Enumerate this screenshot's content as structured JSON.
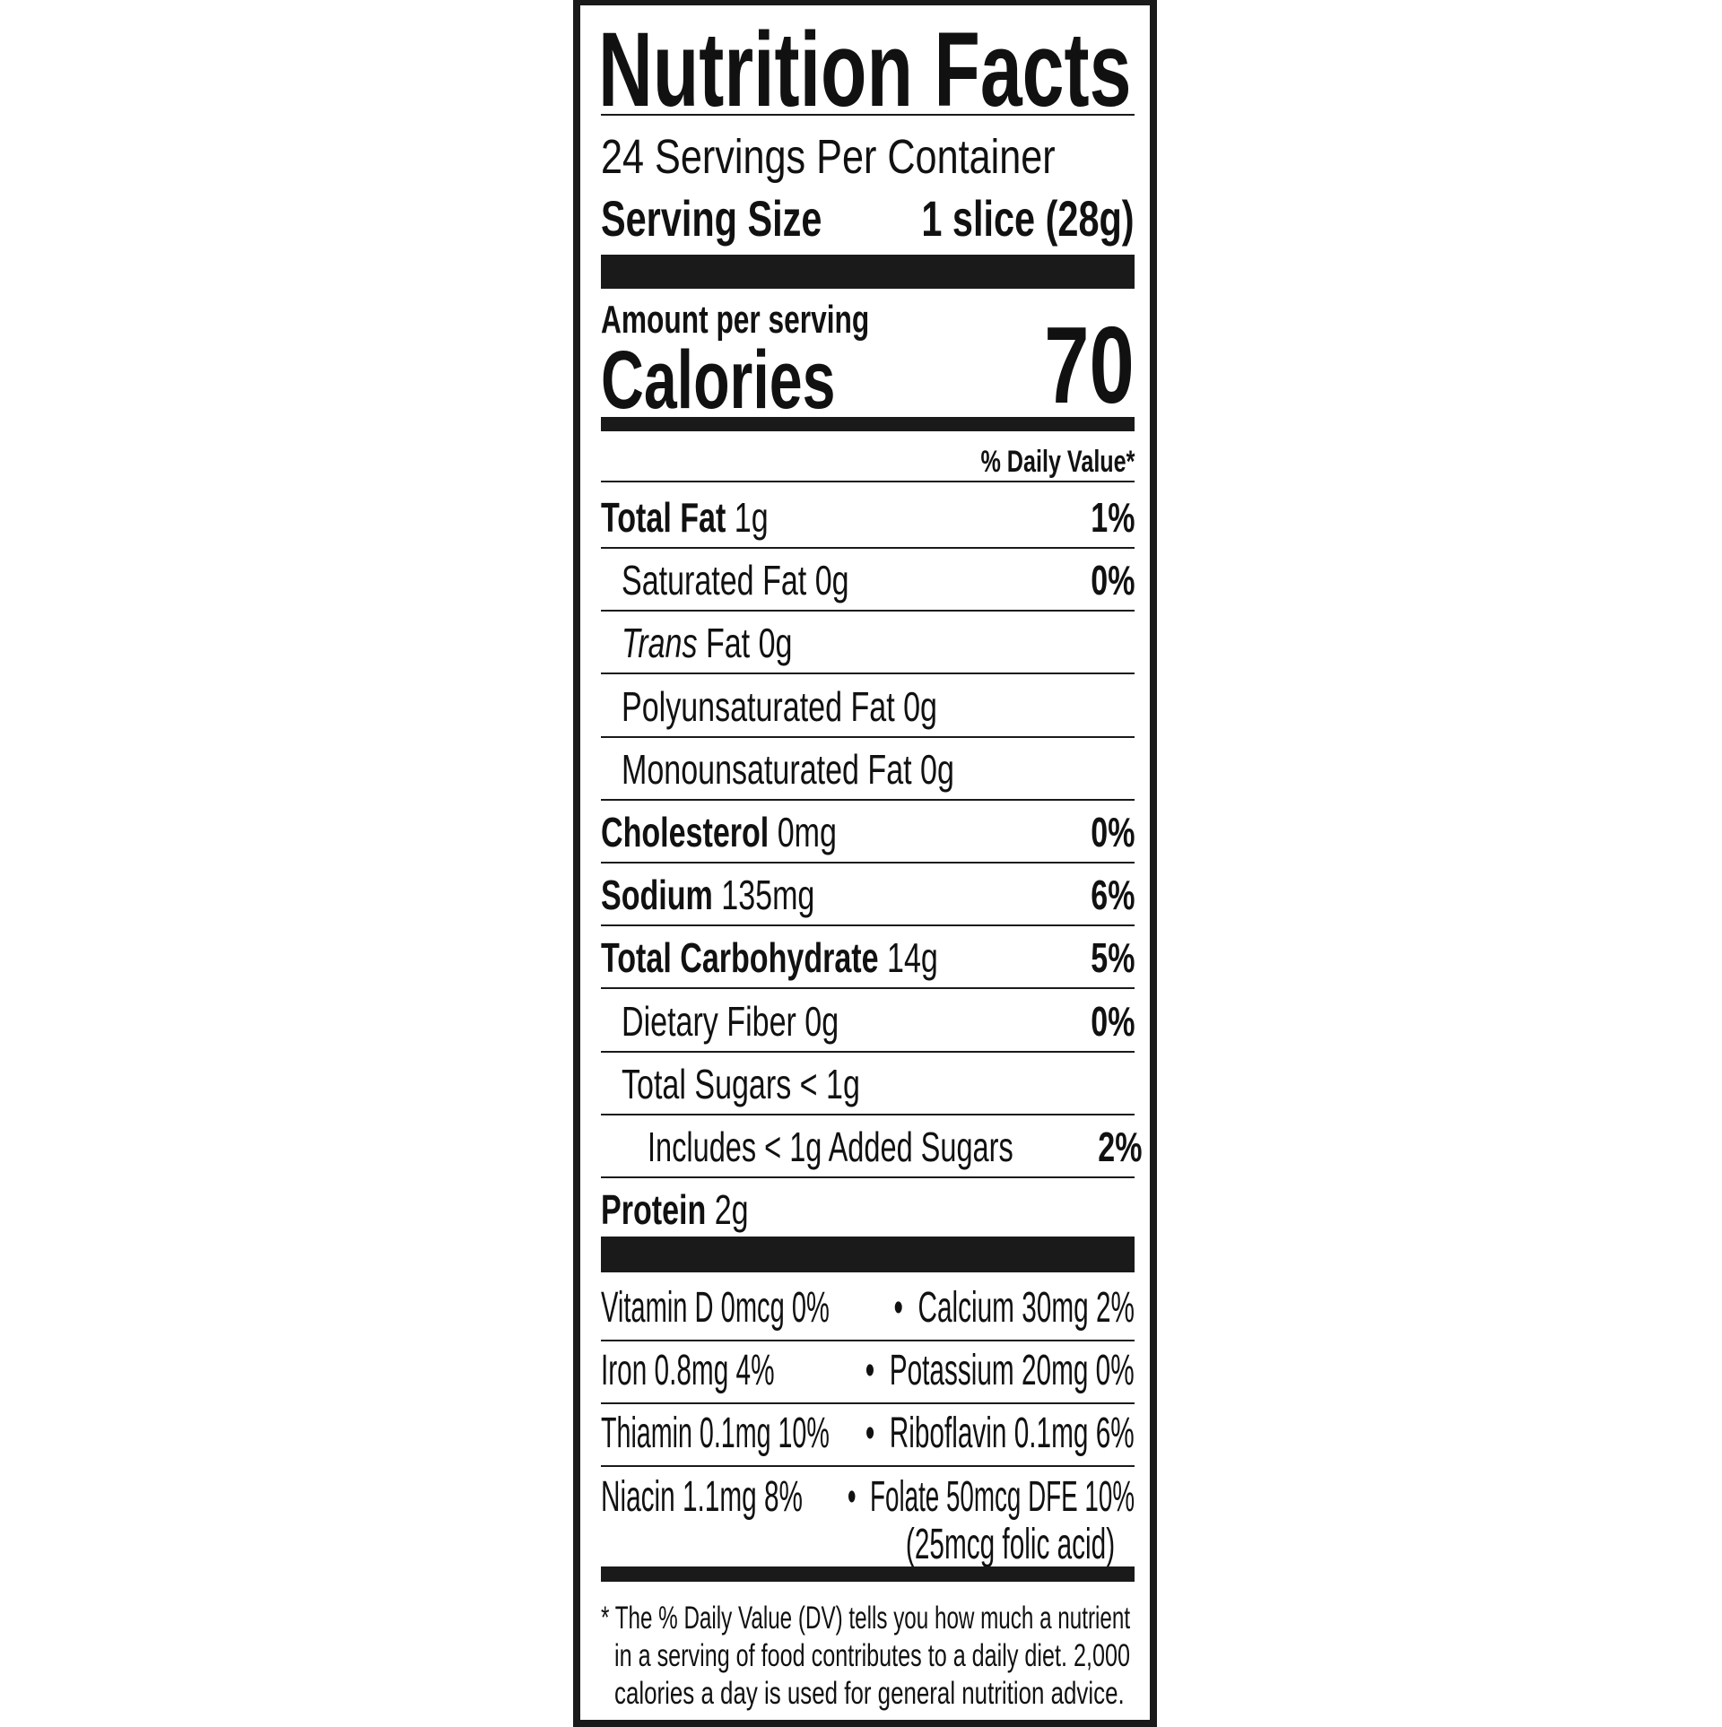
{
  "title": "Nutrition Facts",
  "servings_per_container": "24 Servings Per Container",
  "serving_size_label": "Serving Size",
  "serving_size_value": "1 slice (28g)",
  "amount_per_serving": "Amount per serving",
  "calories_label": "Calories",
  "calories_value": "70",
  "daily_value_header": "% Daily Value*",
  "nutrients": [
    {
      "name": "Total Fat",
      "amount": "1g",
      "dv": "1%",
      "bold": true,
      "indent": 0
    },
    {
      "name": "Saturated Fat",
      "amount": "0g",
      "dv": "0%",
      "bold": false,
      "indent": 1
    },
    {
      "name": "Trans",
      "name_suffix": "Fat",
      "amount": "0g",
      "dv": "",
      "bold": false,
      "indent": 1,
      "italic_name": true
    },
    {
      "name": "Polyunsaturated Fat",
      "amount": "0g",
      "dv": "",
      "bold": false,
      "indent": 1
    },
    {
      "name": "Monounsaturated Fat",
      "amount": "0g",
      "dv": "",
      "bold": false,
      "indent": 1
    },
    {
      "name": "Cholesterol",
      "amount": "0mg",
      "dv": "0%",
      "bold": true,
      "indent": 0
    },
    {
      "name": "Sodium",
      "amount": "135mg",
      "dv": "6%",
      "bold": true,
      "indent": 0
    },
    {
      "name": "Total Carbohydrate",
      "amount": "14g",
      "dv": "5%",
      "bold": true,
      "indent": 0
    },
    {
      "name": "Dietary Fiber",
      "amount": "0g",
      "dv": "0%",
      "bold": false,
      "indent": 1
    },
    {
      "name": "Total Sugars",
      "amount": "< 1g",
      "dv": "",
      "bold": false,
      "indent": 1
    },
    {
      "name": "Includes < 1g Added Sugars",
      "amount": "",
      "dv": "2%",
      "bold": false,
      "indent": 2
    },
    {
      "name": "Protein",
      "amount": "2g",
      "dv": "",
      "bold": true,
      "indent": 0
    }
  ],
  "vitamins": [
    {
      "left": "Vitamin D 0mcg 0%",
      "sep": "•",
      "right": "Calcium 30mg 2%"
    },
    {
      "left": "Iron 0.8mg 4%",
      "sep": "•",
      "right": "Potassium 20mg 0%"
    },
    {
      "left": "Thiamin 0.1mg 10%",
      "sep": "•",
      "right": "Riboflavin 0.1mg 6%"
    },
    {
      "left": "Niacin 1.1mg 8%",
      "sep": "•",
      "right": "Folate 50mcg DFE 10%",
      "right_sub": "(25mcg folic acid)"
    }
  ],
  "footnote": [
    "* The % Daily Value (DV) tells you how much a nutrient",
    "in a serving of food contributes to a daily diet. 2,000",
    "calories a day is used for general nutrition advice."
  ]
}
